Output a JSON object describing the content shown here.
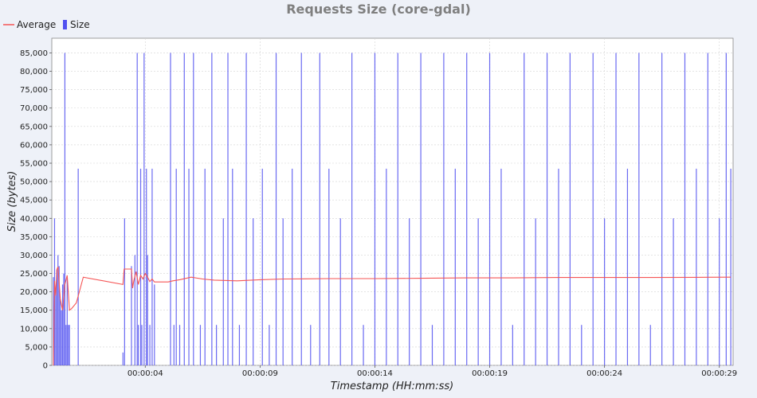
{
  "chart_data": {
    "type": "bar",
    "title": "Requests Size (core-gdal)",
    "xlabel": "Timestamp (HH:mm:ss)",
    "ylabel": "Size (bytes)",
    "ylim": [
      0,
      89000
    ],
    "xlim": [
      -0.07,
      29.6
    ],
    "yticks": [
      0,
      5000,
      10000,
      15000,
      20000,
      25000,
      30000,
      35000,
      40000,
      45000,
      50000,
      55000,
      60000,
      65000,
      70000,
      75000,
      80000,
      85000
    ],
    "ytick_labels": [
      "0",
      "5,000",
      "10,000",
      "15,000",
      "20,000",
      "25,000",
      "30,000",
      "35,000",
      "40,000",
      "45,000",
      "50,000",
      "55,000",
      "60,000",
      "65,000",
      "70,000",
      "75,000",
      "80,000",
      "85,000"
    ],
    "xticks": [
      4,
      9,
      14,
      19,
      24,
      29
    ],
    "xtick_labels": [
      "00:00:04",
      "00:00:09",
      "00:00:14",
      "00:00:19",
      "00:00:24",
      "00:00:29"
    ],
    "grid": true,
    "legend_position": "top-left",
    "legend": [
      {
        "name": "Average",
        "color": "#f55555",
        "kind": "line"
      },
      {
        "name": "Size",
        "color": "#5050f0",
        "kind": "bar"
      }
    ],
    "series": [
      {
        "name": "Size",
        "type": "bar",
        "color": "#5050f0",
        "x": [
          0.0,
          0.05,
          0.1,
          0.15,
          0.2,
          0.25,
          0.3,
          0.35,
          0.4,
          0.45,
          0.5,
          0.55,
          0.6,
          0.65,
          0.7,
          0.75,
          0.8,
          0.85,
          0.9,
          0.95,
          1.02,
          1.08,
          1.3,
          3.03,
          3.1,
          3.4,
          3.55,
          3.65,
          3.7,
          3.8,
          3.85,
          3.95,
          4.05,
          4.1,
          4.2,
          4.3,
          4.4,
          5.1,
          5.25,
          5.35,
          5.5,
          5.7,
          5.9,
          6.1,
          6.4,
          6.6,
          6.9,
          7.1,
          7.4,
          7.6,
          7.8,
          8.1,
          8.4,
          8.7,
          9.1,
          9.4,
          9.7,
          10.0,
          10.4,
          10.8,
          11.2,
          11.6,
          12.0,
          12.5,
          13.0,
          13.5,
          14.0,
          14.5,
          15.0,
          15.5,
          16.0,
          16.5,
          17.0,
          17.5,
          18.0,
          18.5,
          19.0,
          19.5,
          20.0,
          20.5,
          21.0,
          21.5,
          22.0,
          22.5,
          23.0,
          23.5,
          24.0,
          24.5,
          25.0,
          25.5,
          26.0,
          26.5,
          27.0,
          27.5,
          28.0,
          28.5,
          29.0,
          29.3,
          29.5
        ],
        "values": [
          24000,
          40000,
          20000,
          26000,
          30000,
          27000,
          18000,
          15000,
          22000,
          25000,
          85000,
          11000,
          24000,
          11000,
          11000,
          0,
          0,
          0,
          0,
          0,
          0,
          53500,
          0,
          3500,
          40000,
          27000,
          30000,
          85000,
          11000,
          53500,
          11000,
          85000,
          53500,
          30000,
          11000,
          53500,
          22000,
          85000,
          11000,
          53500,
          11000,
          85000,
          53500,
          85000,
          11000,
          53500,
          85000,
          11000,
          40000,
          85000,
          53500,
          11000,
          85000,
          40000,
          53500,
          11000,
          85000,
          40000,
          53500,
          85000,
          11000,
          85000,
          53500,
          40000,
          85000,
          11000,
          85000,
          53500,
          85000,
          40000,
          85000,
          11000,
          85000,
          53500,
          85000,
          40000,
          85000,
          53500,
          11000,
          85000,
          40000,
          85000,
          53500,
          85000,
          11000,
          85000,
          40000,
          85000,
          53500,
          85000,
          11000,
          85000,
          40000,
          85000,
          53500,
          85000,
          40000,
          85000,
          53500
        ]
      },
      {
        "name": "Average",
        "type": "line",
        "color": "#f55555",
        "x": [
          0.0,
          0.05,
          0.1,
          0.15,
          0.2,
          0.3,
          0.4,
          0.5,
          0.6,
          0.7,
          0.8,
          1.0,
          1.3,
          3.03,
          3.08,
          3.4,
          3.45,
          3.5,
          3.6,
          3.7,
          3.8,
          3.9,
          4.0,
          4.1,
          4.2,
          4.3,
          4.4,
          5.0,
          5.2,
          5.5,
          6.0,
          6.5,
          7.0,
          8.0,
          9.0,
          10.0,
          12.0,
          14.0,
          16.0,
          18.0,
          20.0,
          22.0,
          24.0,
          26.0,
          28.0,
          29.5
        ],
        "values": [
          0,
          23000,
          19000,
          26000,
          26800,
          18000,
          15000,
          22000,
          24500,
          15000,
          15500,
          17000,
          24000,
          22000,
          26200,
          26200,
          21000,
          23000,
          25500,
          22000,
          24500,
          23500,
          25000,
          24000,
          22800,
          23500,
          22700,
          22700,
          23000,
          23300,
          24000,
          23500,
          23200,
          23000,
          23300,
          23500,
          23600,
          23600,
          23700,
          23800,
          23800,
          23900,
          23900,
          23900,
          23950,
          24000
        ]
      }
    ]
  }
}
